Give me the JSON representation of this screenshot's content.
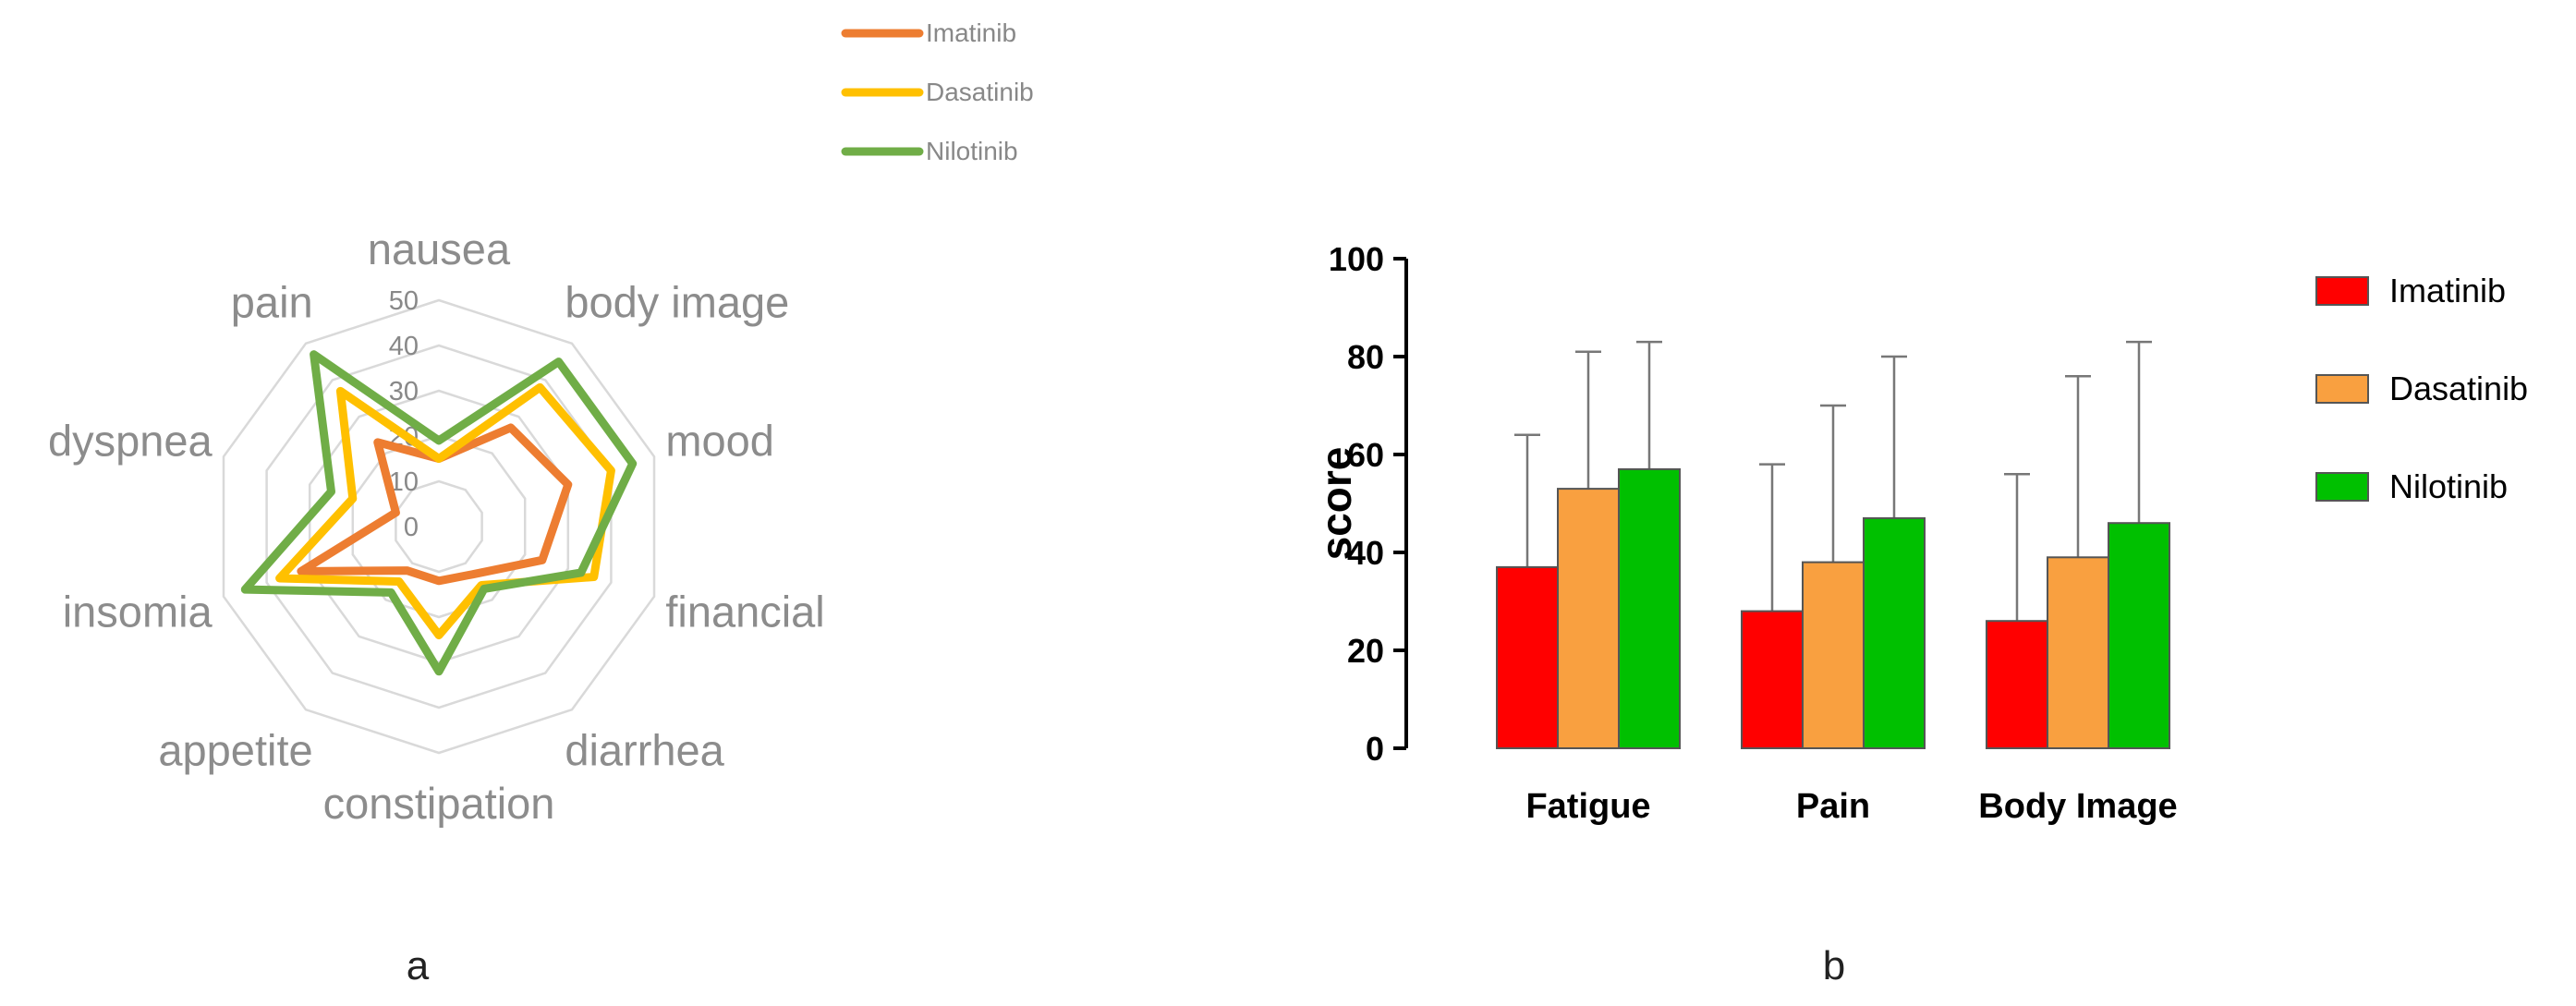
{
  "figure": {
    "panel_a_label": "a",
    "panel_b_label": "b"
  },
  "chart_data": [
    {
      "type": "radar",
      "axes": [
        "nausea",
        "body image",
        "mood",
        "financial",
        "diarrhea",
        "constipation",
        "appetite",
        "insomia",
        "dyspnea",
        "pain"
      ],
      "r_ticks": [
        "0",
        "10",
        "20",
        "30",
        "40",
        "50"
      ],
      "r_range": [
        0,
        50
      ],
      "legend_position": "top",
      "series": [
        {
          "name": "Imatinib",
          "color": "#ED7D31",
          "values": [
            15,
            27,
            30,
            24,
            13,
            12,
            12,
            32,
            10,
            23
          ]
        },
        {
          "name": "Dasatinib",
          "color": "#FFC000",
          "values": [
            15,
            38,
            40,
            36,
            16,
            24,
            15,
            37,
            20,
            37
          ]
        },
        {
          "name": "Nilotinib",
          "color": "#70AD47",
          "values": [
            19,
            45,
            45,
            33,
            17,
            32,
            18,
            45,
            25,
            47
          ]
        }
      ]
    },
    {
      "type": "bar",
      "ylabel": "score",
      "ylim": [
        0,
        100
      ],
      "yticks": [
        "0",
        "20",
        "40",
        "60",
        "80",
        "100"
      ],
      "categories": [
        "Fatigue",
        "Pain",
        "Body Image"
      ],
      "legend_position": "right",
      "series": [
        {
          "name": "Imatinib",
          "color": "#FF0000",
          "values": [
            37,
            28,
            26
          ],
          "error_top": [
            64,
            58,
            56
          ]
        },
        {
          "name": "Dasatinib",
          "color": "#F9A040",
          "values": [
            53,
            38,
            39
          ],
          "error_top": [
            81,
            70,
            76
          ]
        },
        {
          "name": "Nilotinib",
          "color": "#00C000",
          "values": [
            57,
            47,
            46
          ],
          "error_top": [
            83,
            80,
            83
          ]
        }
      ]
    }
  ]
}
